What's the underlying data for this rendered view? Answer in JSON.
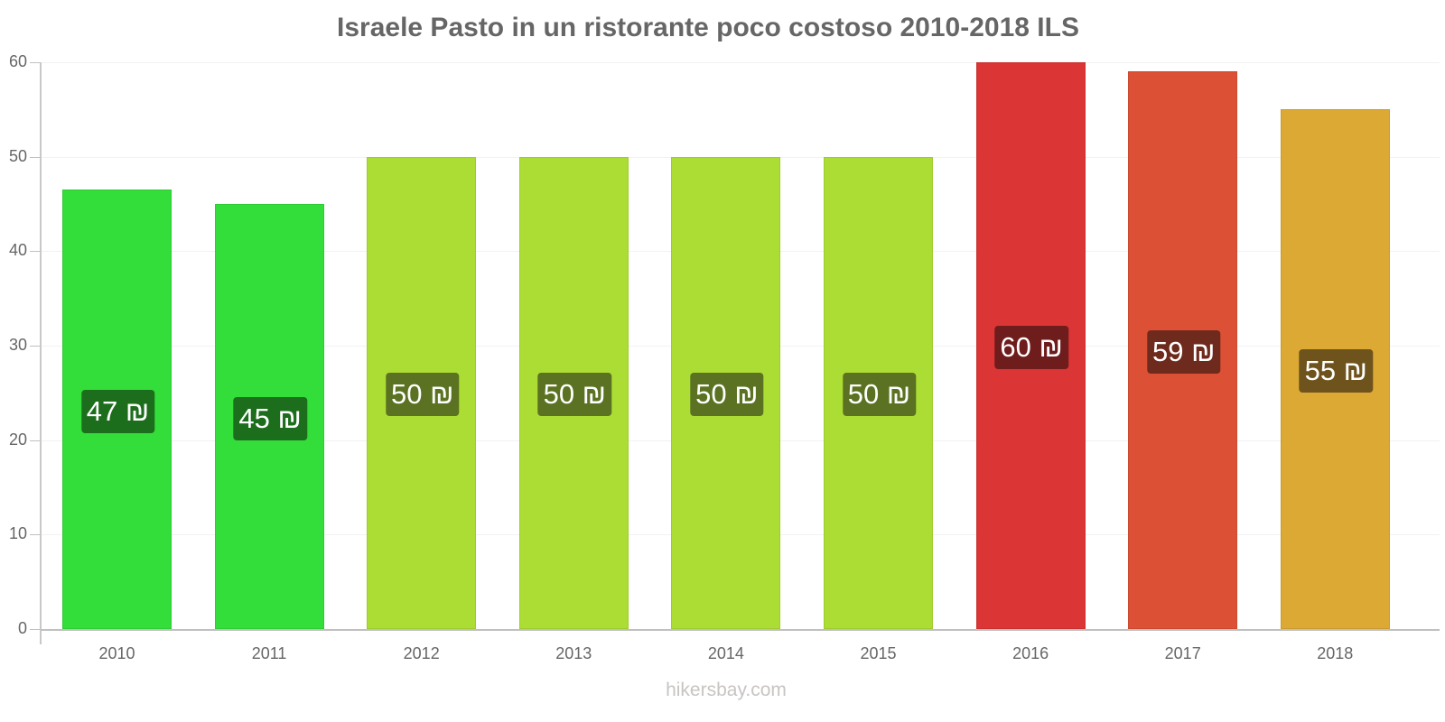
{
  "title": "Israele Pasto in un ristorante poco costoso 2010-2018 ILS",
  "watermark": "hikersbay.com",
  "y_ticks": [
    "0",
    "10",
    "20",
    "30",
    "40",
    "50",
    "60"
  ],
  "chart_data": {
    "type": "bar",
    "title": "Israele Pasto in un ristorante poco costoso 2010-2018 ILS",
    "xlabel": "",
    "ylabel": "",
    "ylim": [
      0,
      60
    ],
    "grid": true,
    "legend": null,
    "categories": [
      "2010",
      "2011",
      "2012",
      "2013",
      "2014",
      "2015",
      "2016",
      "2017",
      "2018"
    ],
    "values": [
      46.5,
      45,
      50,
      50,
      50,
      50,
      60,
      59,
      55
    ],
    "data_labels": [
      "47 ₪",
      "45 ₪",
      "50 ₪",
      "50 ₪",
      "50 ₪",
      "50 ₪",
      "60 ₪",
      "59 ₪",
      "55 ₪"
    ],
    "bar_colors": [
      "#33dd3a",
      "#33dd3a",
      "#acdd34",
      "#acdd34",
      "#acdd34",
      "#acdd34",
      "#dc3535",
      "#dc5035",
      "#dca935"
    ],
    "label_colors": [
      "#1c6e1d",
      "#1c6e1d",
      "#5a7221",
      "#5a7221",
      "#5a7221",
      "#5a7221",
      "#6e1c1c",
      "#6e2a1c",
      "#6e541c"
    ]
  }
}
